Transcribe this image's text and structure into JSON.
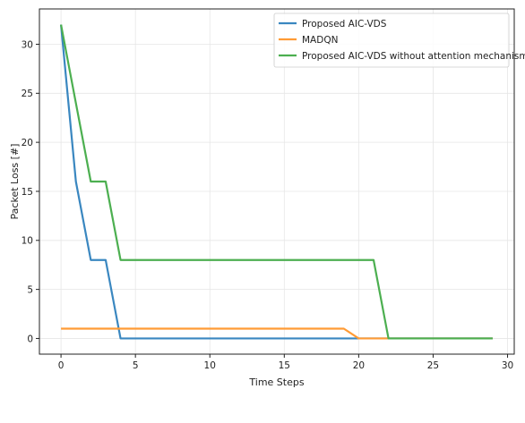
{
  "chart_data": {
    "type": "line",
    "title": "",
    "xlabel": "Time Steps",
    "ylabel": "Packet Loss [#]",
    "xlim": [
      -1.45,
      30.45
    ],
    "ylim": [
      -1.6,
      33.6
    ],
    "xticks": [
      0,
      5,
      10,
      15,
      20,
      25,
      30
    ],
    "yticks": [
      0,
      5,
      10,
      15,
      20,
      25,
      30
    ],
    "grid": true,
    "legend_position": "top-right",
    "x": [
      0,
      1,
      2,
      3,
      4,
      5,
      6,
      7,
      8,
      9,
      10,
      11,
      12,
      13,
      14,
      15,
      16,
      17,
      18,
      19,
      20,
      21,
      22,
      23,
      24,
      25,
      26,
      27,
      28,
      29
    ],
    "series": [
      {
        "name": "Proposed AIC-VDS",
        "color": "#3a87c0",
        "values": [
          32,
          16,
          8,
          8,
          0,
          0,
          0,
          0,
          0,
          0,
          0,
          0,
          0,
          0,
          0,
          0,
          0,
          0,
          0,
          0,
          0,
          0,
          0,
          0,
          0,
          0,
          0,
          0,
          0,
          0
        ]
      },
      {
        "name": "MADQN",
        "color": "#ff9b35",
        "values": [
          1,
          1,
          1,
          1,
          1,
          1,
          1,
          1,
          1,
          1,
          1,
          1,
          1,
          1,
          1,
          1,
          1,
          1,
          1,
          1,
          0,
          0,
          0,
          0,
          0,
          0,
          0,
          0,
          0,
          0
        ]
      },
      {
        "name": "Proposed AIC-VDS without attention mechanism",
        "color": "#4caf50",
        "values": [
          32,
          24,
          16,
          16,
          8,
          8,
          8,
          8,
          8,
          8,
          8,
          8,
          8,
          8,
          8,
          8,
          8,
          8,
          8,
          8,
          8,
          8,
          0,
          0,
          0,
          0,
          0,
          0,
          0,
          0
        ]
      }
    ]
  }
}
